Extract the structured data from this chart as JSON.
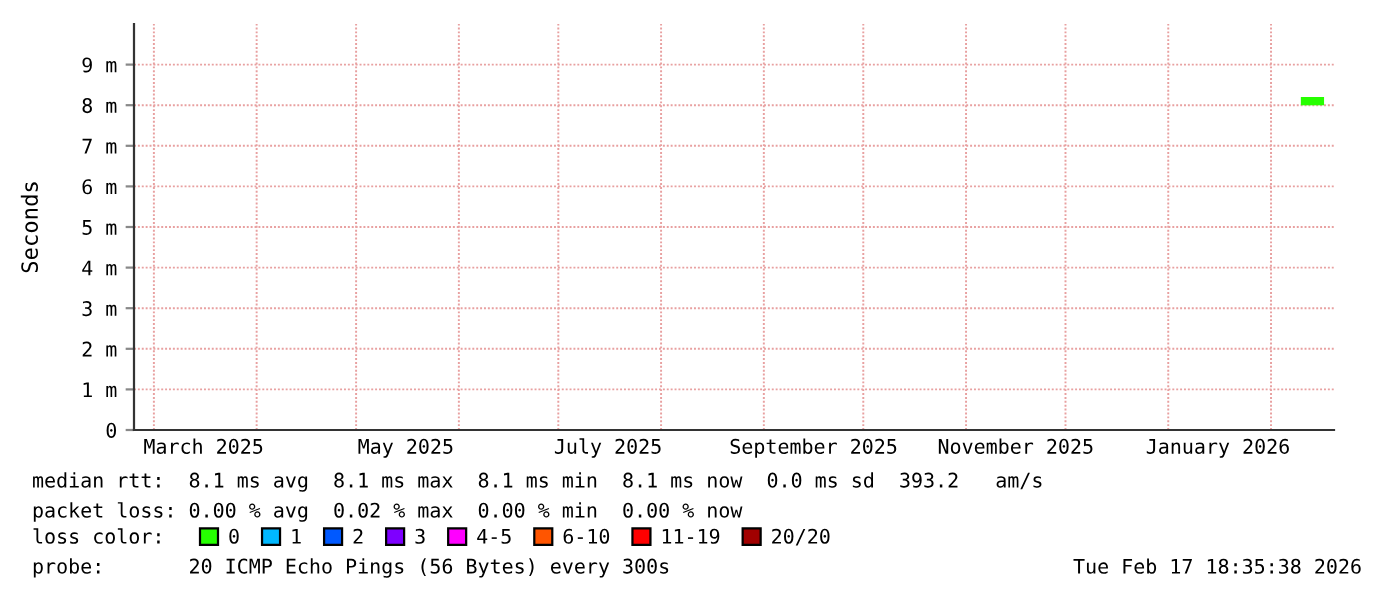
{
  "chart_data": {
    "type": "line",
    "ylabel": "Seconds",
    "legend_title": "loss color:",
    "legend": "bottom",
    "grid": true,
    "xlim": [
      "2025-02-23",
      "2026-02-20"
    ],
    "xticks": [
      {
        "value": "2025-03-01",
        "label": null
      },
      {
        "value": "2025-03-16",
        "label": "March 2025"
      },
      {
        "value": "2025-04-01",
        "label": null
      },
      {
        "value": "2025-05-01",
        "label": null
      },
      {
        "value": "2025-05-16",
        "label": "May 2025"
      },
      {
        "value": "2025-06-01",
        "label": null
      },
      {
        "value": "2025-07-01",
        "label": null
      },
      {
        "value": "2025-07-16",
        "label": "July 2025"
      },
      {
        "value": "2025-08-01",
        "label": null
      },
      {
        "value": "2025-09-01",
        "label": null
      },
      {
        "value": "2025-09-16",
        "label": "September 2025"
      },
      {
        "value": "2025-10-01",
        "label": null
      },
      {
        "value": "2025-11-01",
        "label": null
      },
      {
        "value": "2025-11-16",
        "label": "November 2025"
      },
      {
        "value": "2025-12-01",
        "label": null
      },
      {
        "value": "2026-01-01",
        "label": null
      },
      {
        "value": "2026-01-16",
        "label": "January 2026"
      },
      {
        "value": "2026-02-01",
        "label": null
      }
    ],
    "ylim": [
      0,
      10
    ],
    "yticks": [
      0,
      {
        "value": 1,
        "label": "1 m"
      },
      {
        "value": 2,
        "label": "2 m"
      },
      {
        "value": 3,
        "label": "3 m"
      },
      {
        "value": 4,
        "label": "4 m"
      },
      {
        "value": 5,
        "label": "5 m"
      },
      {
        "value": 6,
        "label": "6 m"
      },
      {
        "value": 7,
        "label": "7 m"
      },
      {
        "value": 8,
        "label": "8 m"
      },
      {
        "value": 9,
        "label": "9 m"
      }
    ],
    "series": [
      {
        "name": "0",
        "color": "#26ff00",
        "x": [
          "2026-02-10",
          "2026-02-17"
        ],
        "values": [
          8.1,
          8.1
        ]
      },
      {
        "name": "1",
        "color": "#00b8ff"
      },
      {
        "name": "2",
        "color": "#0059ff"
      },
      {
        "name": "3",
        "color": "#7e00ff"
      },
      {
        "name": "4-5",
        "color": "#ff00ff"
      },
      {
        "name": "6-10",
        "color": "#ff5500"
      },
      {
        "name": "11-19",
        "color": "#ff0000"
      },
      {
        "name": "20/20",
        "color": "#a10000"
      }
    ],
    "annotations": [
      "median rtt:  8.1 ms avg  8.1 ms max  8.1 ms min  8.1 ms now  0.0 ms sd  393.2   am/s",
      "packet loss: 0.00 % avg  0.02 % max  0.00 % min  0.00 % now",
      "probe:       20 ICMP Echo Pings (56 Bytes) every 300s",
      "Tue Feb 17 18:35:38 2026"
    ]
  }
}
